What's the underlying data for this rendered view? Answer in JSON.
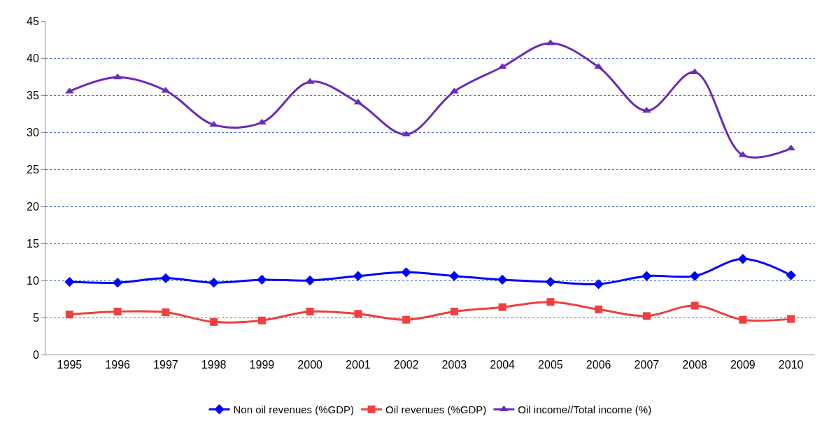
{
  "chart_data": {
    "type": "line",
    "categories": [
      "1995",
      "1996",
      "1997",
      "1998",
      "1999",
      "2000",
      "2001",
      "2002",
      "2003",
      "2004",
      "2005",
      "2006",
      "2007",
      "2008",
      "2009",
      "2010"
    ],
    "series": [
      {
        "name": "Non oil revenues (%GDP)",
        "color": "#0000ff",
        "marker": "diamond",
        "values": [
          9.8,
          9.7,
          10.3,
          9.7,
          10.1,
          10.0,
          10.6,
          11.1,
          10.6,
          10.1,
          9.8,
          9.5,
          10.6,
          10.6,
          12.9,
          10.7
        ]
      },
      {
        "name": "Oil revenues (%GDP)",
        "color": "#ef3f3f",
        "marker": "square",
        "values": [
          5.4,
          5.8,
          5.7,
          4.4,
          4.6,
          5.8,
          5.5,
          4.7,
          5.8,
          6.4,
          7.1,
          6.1,
          5.2,
          6.6,
          4.7,
          4.8
        ]
      },
      {
        "name": "Oil income//Total income (%)",
        "color": "#6a2bb8",
        "marker": "triangle",
        "values": [
          35.5,
          37.4,
          35.6,
          31.0,
          31.3,
          36.8,
          34.0,
          29.7,
          35.5,
          38.8,
          42.0,
          38.8,
          32.9,
          38.1,
          26.9,
          27.8
        ]
      }
    ],
    "ylim": [
      0,
      45
    ],
    "yticks": [
      0,
      5,
      10,
      15,
      20,
      25,
      30,
      35,
      40,
      45
    ],
    "grid": "y",
    "legend": "bottom",
    "line_style": "solid"
  }
}
